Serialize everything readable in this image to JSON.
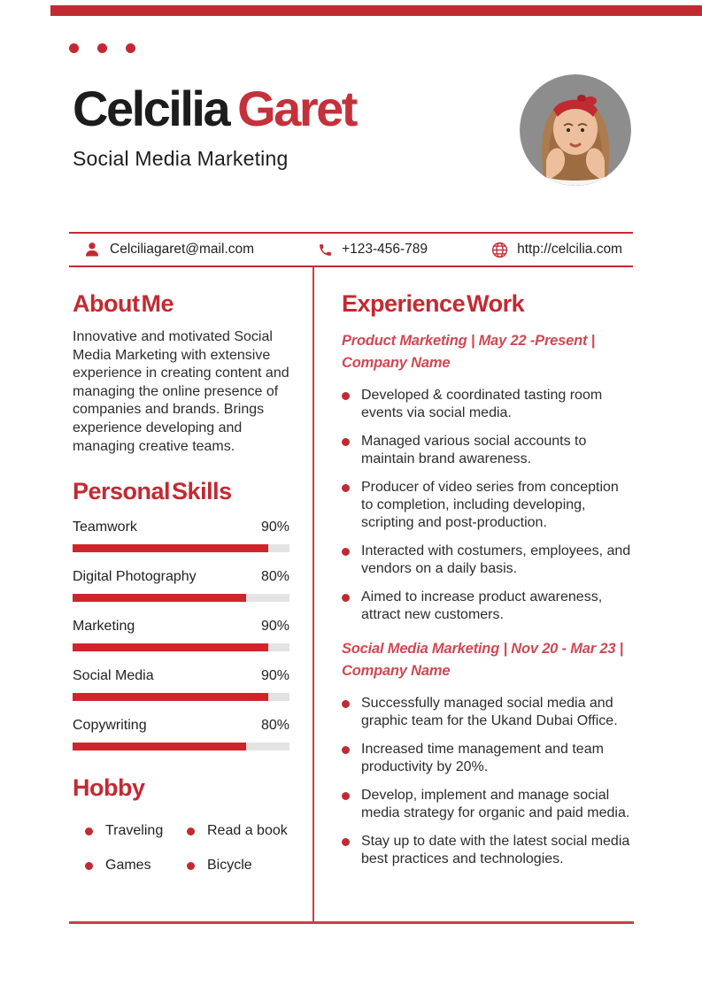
{
  "colors": {
    "accent": "#c22a32",
    "line_red": "#c94046",
    "bar_fill": "#d0242b",
    "bar_track": "#e3e3e3",
    "job_title_red": "#d04853",
    "name_black": "#1c1c1c",
    "photo_bg": "#8d8d8d"
  },
  "header": {
    "name_black": "Celcilia",
    "name_red": "Garet",
    "subtitle": "Social Media Marketing"
  },
  "contact": {
    "email": {
      "icon": "person-icon",
      "text": "Celciliagaret@mail.com"
    },
    "phone": {
      "icon": "phone-icon",
      "text": "+123-456-789"
    },
    "website": {
      "icon": "globe-icon",
      "text": "http://celcilia.com"
    }
  },
  "about": {
    "title": "About Me",
    "body": "Innovative and motivated Social Media Marketing with extensive experience in creating content and managing the online presence of companies and brands. Brings experience developing and managing creative teams."
  },
  "skills": {
    "title": "Personal Skills",
    "items": [
      {
        "label": "Teamwork",
        "percent": "90%",
        "value": 90
      },
      {
        "label": "Digital Photography",
        "percent": "80%",
        "value": 80
      },
      {
        "label": "Marketing",
        "percent": "90%",
        "value": 90
      },
      {
        "label": "Social Media",
        "percent": "90%",
        "value": 90
      },
      {
        "label": "Copywriting",
        "percent": "80%",
        "value": 80
      }
    ]
  },
  "hobby": {
    "title": "Hobby",
    "items": [
      "Traveling",
      "Read a book",
      "Games",
      "Bicycle"
    ]
  },
  "experience": {
    "title": "Experience Work",
    "jobs": [
      {
        "heading": "Product Marketing | May 22 -Present | Company Name",
        "bullets": [
          "Developed & coordinated tasting room events via social media.",
          "Managed various social accounts to maintain brand awareness.",
          "Producer of video series from conception to completion, including developing, scripting and post-production.",
          "Interacted with costumers, employees, and vendors on a daily basis.",
          "Aimed to increase product awareness, attract new customers."
        ]
      },
      {
        "heading": "Social Media Marketing | Nov 20 - Mar 23 | Company Name",
        "bullets": [
          "Successfully managed social media and graphic team for the Ukand Dubai Office.",
          "Increased time management and team productivity by 20%.",
          "Develop, implement and manage social media strategy for organic and paid media.",
          "Stay up to date with the latest social media best practices and technologies."
        ]
      }
    ]
  }
}
